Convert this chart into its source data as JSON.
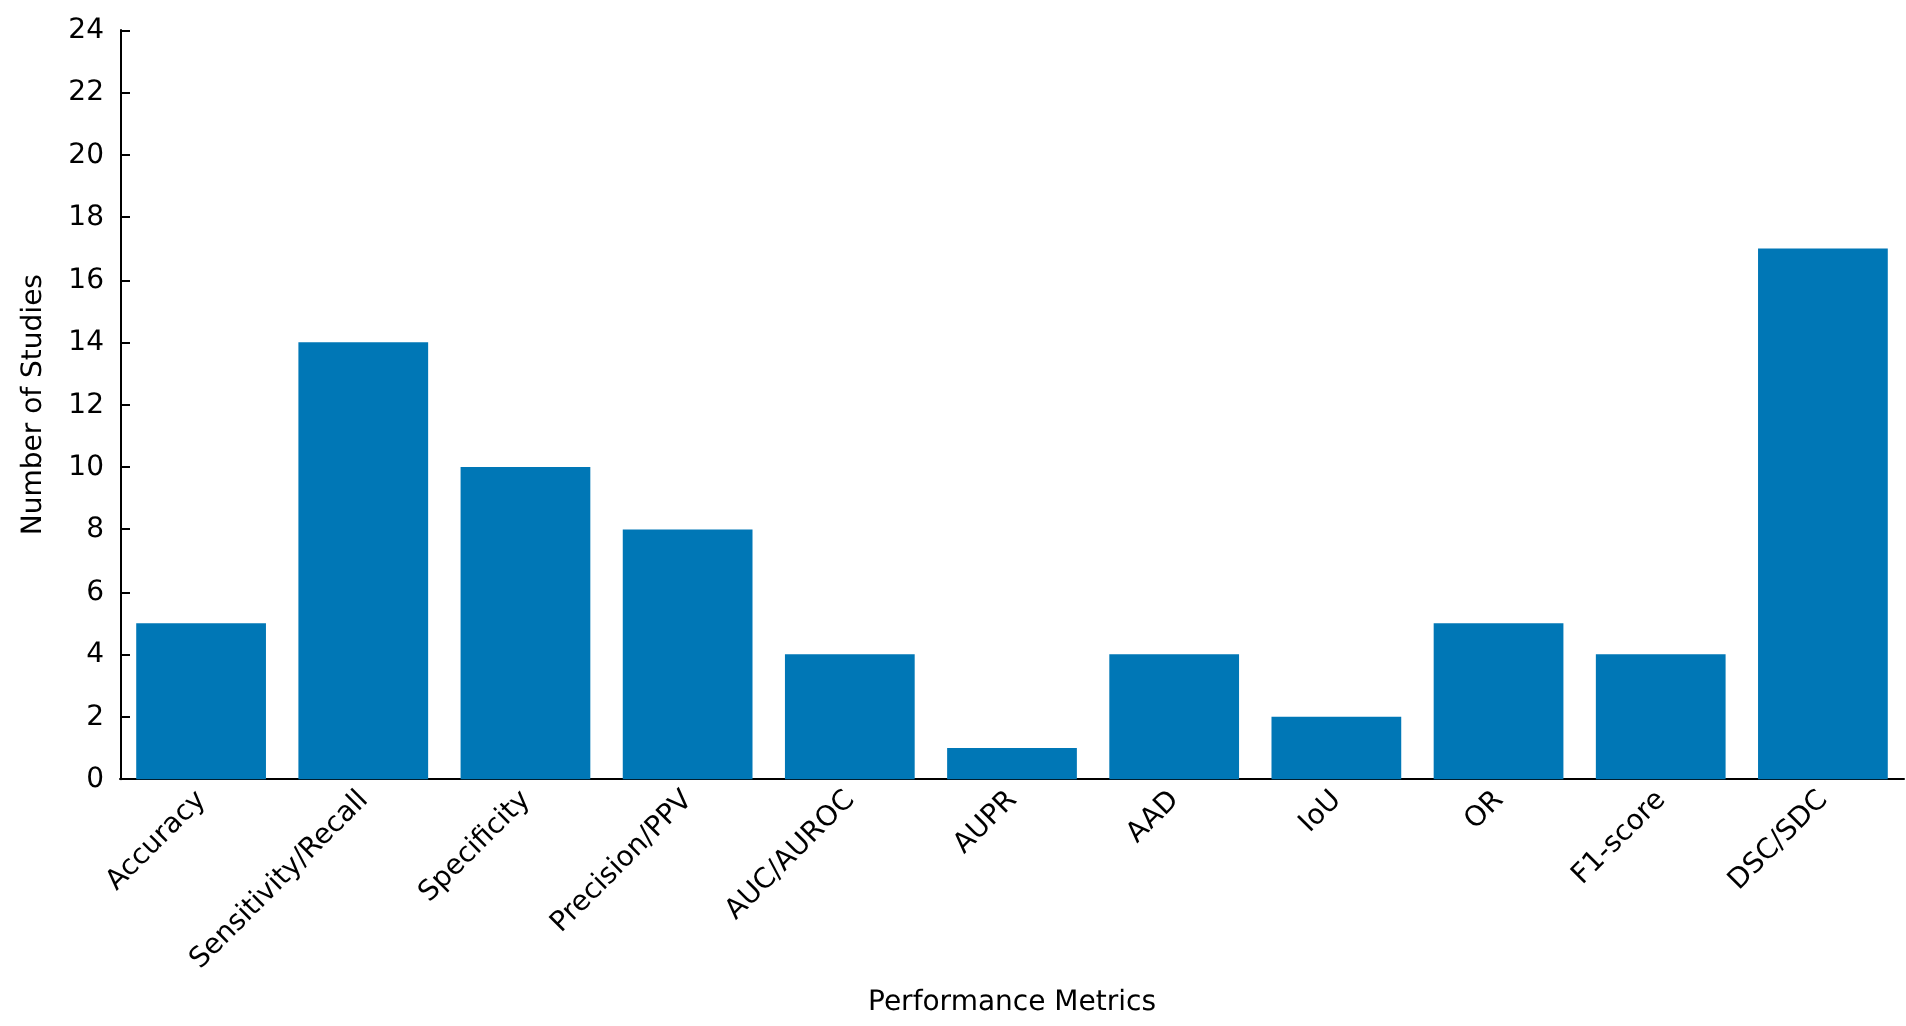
{
  "chart_data": {
    "type": "bar",
    "xlabel": "Performance Metrics",
    "ylabel": "Number of Studies",
    "categories": [
      "Accuracy",
      "Sensitivity/Recall",
      "Specificity",
      "Precision/PPV",
      "AUC/AUROC",
      "AUPR",
      "AAD",
      "IoU",
      "OR",
      "F1-score",
      "DSC/SDC"
    ],
    "values": [
      5,
      14,
      10,
      8,
      4,
      1,
      4,
      2,
      5,
      4,
      17
    ],
    "color": "#0077b6",
    "ylim": [
      0,
      24
    ],
    "yticks": [
      0,
      2,
      4,
      6,
      8,
      10,
      12,
      14,
      16,
      18,
      20,
      22,
      24
    ],
    "grid": false
  }
}
